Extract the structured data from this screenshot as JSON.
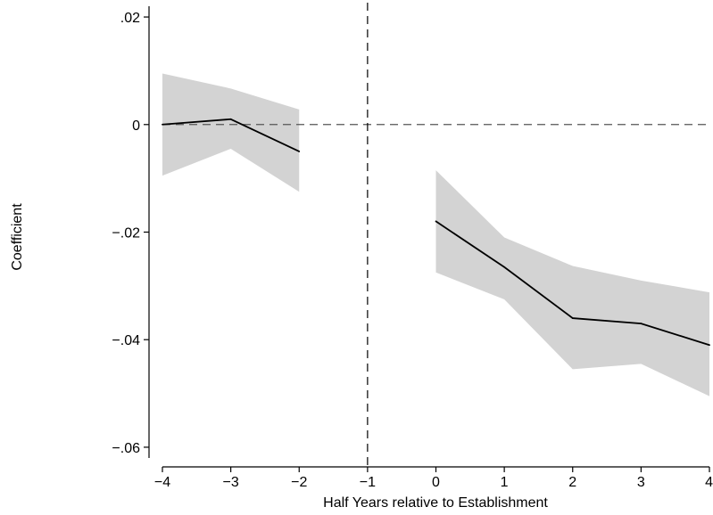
{
  "chart_data": {
    "type": "line",
    "title": "",
    "xlabel": "Half Years relative to Establishment",
    "ylabel": "Coefficient",
    "xlim": [
      -4,
      4
    ],
    "ylim": [
      -0.062,
      0.022
    ],
    "x_ticks": [
      -4,
      -3,
      -2,
      -1,
      0,
      1,
      2,
      3,
      4
    ],
    "x_tick_labels": [
      "−4",
      "−3",
      "−2",
      "−1",
      "0",
      "1",
      "2",
      "3",
      "4"
    ],
    "y_ticks": [
      0.02,
      0,
      -0.02,
      -0.04,
      -0.06
    ],
    "y_tick_labels": [
      ".02",
      "0",
      "−.02",
      "−.04",
      "−.06"
    ],
    "reference_lines": {
      "horizontal_y": 0,
      "vertical_x": -1,
      "style": "dashed"
    },
    "series": [
      {
        "segment": "pre",
        "x": [
          -4,
          -3,
          -2
        ],
        "y": [
          0.0,
          0.001,
          -0.005
        ],
        "ci_lower": [
          -0.0095,
          -0.0045,
          -0.0125
        ],
        "ci_upper": [
          0.0095,
          0.0067,
          0.0028
        ]
      },
      {
        "segment": "post",
        "x": [
          0,
          1,
          2,
          3,
          4
        ],
        "y": [
          -0.018,
          -0.0265,
          -0.036,
          -0.037,
          -0.041
        ],
        "ci_lower": [
          -0.0275,
          -0.0325,
          -0.0455,
          -0.0445,
          -0.0505
        ],
        "ci_upper": [
          -0.0085,
          -0.021,
          -0.0263,
          -0.029,
          -0.0312
        ]
      }
    ],
    "grid": false,
    "legend": "none",
    "colors": {
      "line": "#000000",
      "ci_band": "#d3d3d3",
      "reference": "#555555"
    }
  }
}
